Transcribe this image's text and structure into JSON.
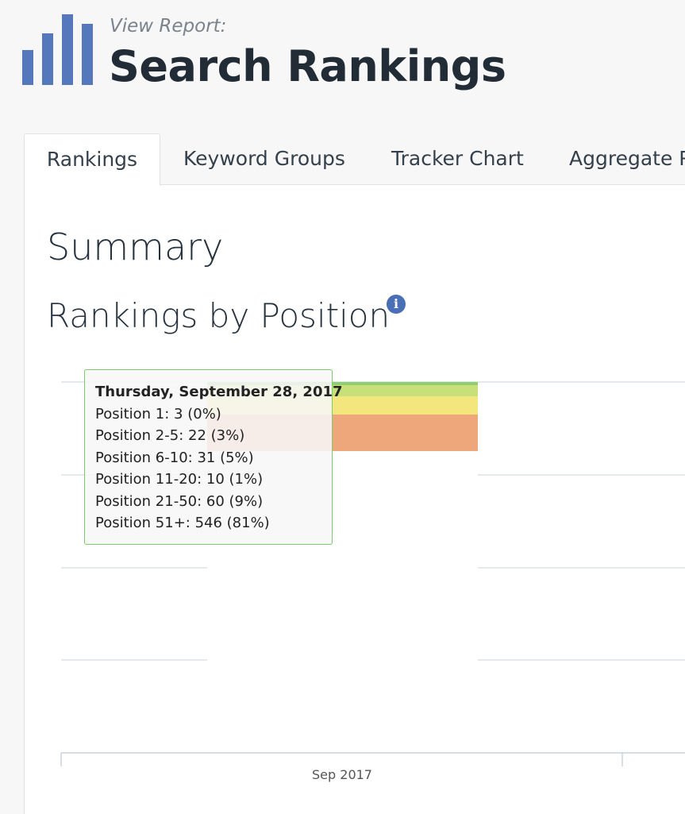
{
  "header": {
    "eyebrow": "View Report:",
    "title": "Search Rankings"
  },
  "tabs": [
    "Rankings",
    "Keyword Groups",
    "Tracker Chart",
    "Aggregate R"
  ],
  "section": {
    "title": "Summary",
    "subtitle": "Rankings by Position"
  },
  "chart": {
    "x_label": "Sep 2017"
  },
  "tooltip": {
    "title": "Thursday, September 28, 2017",
    "lines": [
      "Position 1: 3 (0%)",
      "Position 2-5: 22 (3%)",
      "Position 6-10: 31 (5%)",
      "Position 11-20: 10 (1%)",
      "Position 21-50: 60 (9%)",
      "Position 51+: 546 (81%)"
    ]
  }
}
